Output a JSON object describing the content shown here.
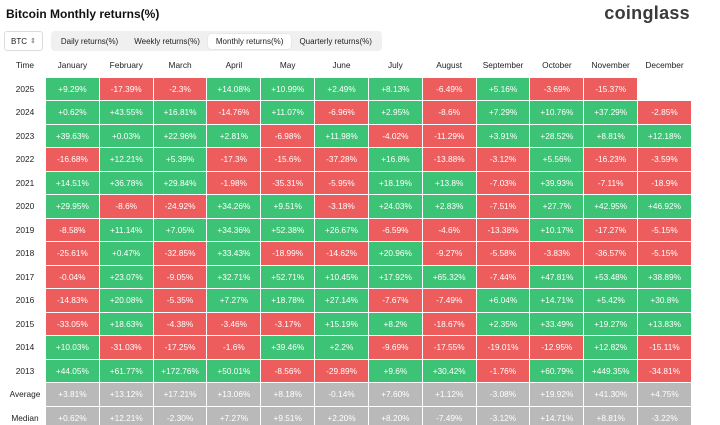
{
  "title": "Bitcoin Monthly returns(%)",
  "brand": "coinglass",
  "colors": {
    "positive": "#3dc375",
    "negative": "#ee5d5d",
    "stat": "#b9b9b9"
  },
  "toolbar": {
    "asset": "BTC",
    "tabs": [
      "Daily returns(%)",
      "Weekly returns(%)",
      "Monthly returns(%)",
      "Quarterly returns(%)"
    ],
    "active_tab": 2
  },
  "table": {
    "corner": "Time",
    "months": [
      "January",
      "February",
      "March",
      "April",
      "May",
      "June",
      "July",
      "August",
      "September",
      "October",
      "November",
      "December"
    ],
    "rows": [
      {
        "year": "2025",
        "values": [
          "+9.29%",
          "-17.39%",
          "-2.3%",
          "+14.08%",
          "+10.99%",
          "+2.49%",
          "+8.13%",
          "-6.49%",
          "+5.16%",
          "-3.69%",
          "-15.37%",
          ""
        ]
      },
      {
        "year": "2024",
        "values": [
          "+0.62%",
          "+43.55%",
          "+16.81%",
          "-14.76%",
          "+11.07%",
          "-6.96%",
          "+2.95%",
          "-8.6%",
          "+7.29%",
          "+10.76%",
          "+37.29%",
          "-2.85%"
        ]
      },
      {
        "year": "2023",
        "values": [
          "+39.63%",
          "+0.03%",
          "+22.96%",
          "+2.81%",
          "-6.98%",
          "+11.98%",
          "-4.02%",
          "-11.29%",
          "+3.91%",
          "+28.52%",
          "+8.81%",
          "+12.18%"
        ]
      },
      {
        "year": "2022",
        "values": [
          "-16.68%",
          "+12.21%",
          "+5.39%",
          "-17.3%",
          "-15.6%",
          "-37.28%",
          "+16.8%",
          "-13.88%",
          "-3.12%",
          "+5.56%",
          "-16.23%",
          "-3.59%"
        ]
      },
      {
        "year": "2021",
        "values": [
          "+14.51%",
          "+36.78%",
          "+29.84%",
          "-1.98%",
          "-35.31%",
          "-5.95%",
          "+18.19%",
          "+13.8%",
          "-7.03%",
          "+39.93%",
          "-7.11%",
          "-18.9%"
        ]
      },
      {
        "year": "2020",
        "values": [
          "+29.95%",
          "-8.6%",
          "-24.92%",
          "+34.26%",
          "+9.51%",
          "-3.18%",
          "+24.03%",
          "+2.83%",
          "-7.51%",
          "+27.7%",
          "+42.95%",
          "+46.92%"
        ]
      },
      {
        "year": "2019",
        "values": [
          "-8.58%",
          "+11.14%",
          "+7.05%",
          "+34.36%",
          "+52.38%",
          "+26.67%",
          "-6.59%",
          "-4.6%",
          "-13.38%",
          "+10.17%",
          "-17.27%",
          "-5.15%"
        ]
      },
      {
        "year": "2018",
        "values": [
          "-25.61%",
          "+0.47%",
          "-32.85%",
          "+33.43%",
          "-18.99%",
          "-14.62%",
          "+20.96%",
          "-9.27%",
          "-5.58%",
          "-3.83%",
          "-36.57%",
          "-5.15%"
        ]
      },
      {
        "year": "2017",
        "values": [
          "-0.04%",
          "+23.07%",
          "-9.05%",
          "+32.71%",
          "+52.71%",
          "+10.45%",
          "+17.92%",
          "+65.32%",
          "-7.44%",
          "+47.81%",
          "+53.48%",
          "+38.89%"
        ]
      },
      {
        "year": "2016",
        "values": [
          "-14.83%",
          "+20.08%",
          "-5.35%",
          "+7.27%",
          "+18.78%",
          "+27.14%",
          "-7.67%",
          "-7.49%",
          "+6.04%",
          "+14.71%",
          "+5.42%",
          "+30.8%"
        ]
      },
      {
        "year": "2015",
        "values": [
          "-33.05%",
          "+18.63%",
          "-4.38%",
          "-3.46%",
          "-3.17%",
          "+15.19%",
          "+8.2%",
          "-18.67%",
          "+2.35%",
          "+33.49%",
          "+19.27%",
          "+13.83%"
        ]
      },
      {
        "year": "2014",
        "values": [
          "+10.03%",
          "-31.03%",
          "-17.25%",
          "-1.6%",
          "+39.46%",
          "+2.2%",
          "-9.69%",
          "-17.55%",
          "-19.01%",
          "-12.95%",
          "+12.82%",
          "-15.11%"
        ]
      },
      {
        "year": "2013",
        "values": [
          "+44.05%",
          "+61.77%",
          "+172.76%",
          "+50.01%",
          "-8.56%",
          "-29.89%",
          "+9.6%",
          "+30.42%",
          "-1.76%",
          "+60.79%",
          "+449.35%",
          "-34.81%"
        ]
      }
    ],
    "stats": [
      {
        "label": "Average",
        "values": [
          "+3.81%",
          "+13.12%",
          "+17.21%",
          "+13.06%",
          "+8.18%",
          "-0.14%",
          "+7.60%",
          "+1.12%",
          "-3.08%",
          "+19.92%",
          "+41.30%",
          "+4.75%"
        ]
      },
      {
        "label": "Median",
        "values": [
          "+0.62%",
          "+12.21%",
          "-2.30%",
          "+7.27%",
          "+9.51%",
          "+2.20%",
          "+8.20%",
          "-7.49%",
          "-3.12%",
          "+14.71%",
          "+8.81%",
          "-3.22%"
        ]
      }
    ]
  }
}
